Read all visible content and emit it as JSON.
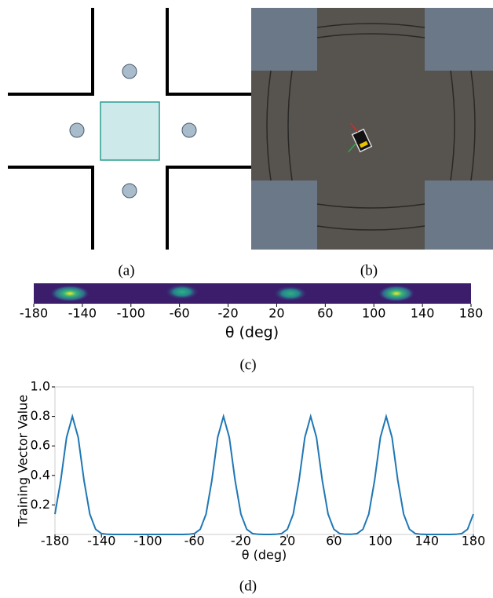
{
  "captions": [
    "(a)",
    "(b)",
    "(c)",
    "(d)"
  ],
  "chart_data": [
    {
      "type": "strip",
      "xlabel": "θ (deg)",
      "xlim": [
        -180,
        180
      ],
      "xticks": [
        -180,
        -140,
        -100,
        -60,
        -20,
        20,
        60,
        100,
        140,
        180
      ]
    },
    {
      "type": "line",
      "xlabel": "θ (deg)",
      "ylabel": "Training Vector Value",
      "color": "#1f77b4",
      "xlim": [
        -180,
        180
      ],
      "xticks": [
        -180,
        -140,
        -100,
        -60,
        -20,
        20,
        60,
        100,
        140,
        180
      ],
      "ylim": [
        0,
        1
      ],
      "yticks": [
        0.2,
        0.4,
        0.6,
        0.8,
        {
          "value": 1,
          "label": "1.0"
        }
      ],
      "x": [
        -180,
        -175,
        -170,
        -165,
        -160,
        -155,
        -150,
        -145,
        -140,
        -135,
        -130,
        -125,
        -120,
        -115,
        -110,
        -105,
        -100,
        -95,
        -90,
        -85,
        -80,
        -75,
        -70,
        -65,
        -60,
        -55,
        -50,
        -45,
        -40,
        -35,
        -30,
        -25,
        -20,
        -15,
        -10,
        -5,
        0,
        5,
        10,
        15,
        20,
        25,
        30,
        35,
        40,
        45,
        50,
        55,
        60,
        65,
        70,
        75,
        80,
        85,
        90,
        95,
        100,
        105,
        110,
        115,
        120,
        125,
        130,
        135,
        140,
        145,
        150,
        155,
        160,
        165,
        170,
        175,
        180
      ],
      "values": [
        0.138,
        0.366,
        0.658,
        0.8,
        0.658,
        0.366,
        0.138,
        0.035,
        0.006,
        0.001,
        0,
        0,
        0,
        0,
        0,
        0,
        0,
        0,
        0,
        0,
        0,
        0,
        0,
        0.001,
        0.006,
        0.035,
        0.138,
        0.366,
        0.658,
        0.8,
        0.658,
        0.366,
        0.138,
        0.035,
        0.006,
        0.001,
        0,
        0,
        0.001,
        0.006,
        0.035,
        0.138,
        0.366,
        0.658,
        0.8,
        0.658,
        0.366,
        0.138,
        0.035,
        0.006,
        0.001,
        0.001,
        0.006,
        0.035,
        0.138,
        0.366,
        0.658,
        0.8,
        0.658,
        0.366,
        0.138,
        0.035,
        0.006,
        0.001,
        0,
        0,
        0,
        0,
        0,
        0.001,
        0.006,
        0.035,
        0.138
      ]
    }
  ]
}
